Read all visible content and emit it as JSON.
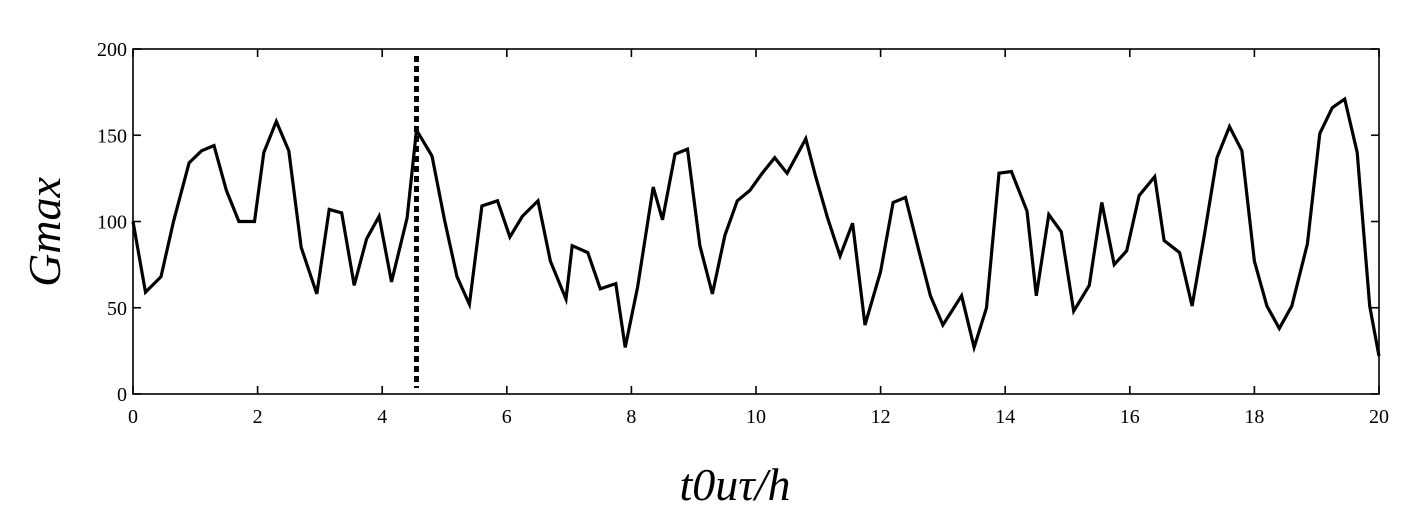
{
  "chart_data": {
    "type": "line",
    "title": "",
    "xlabel": "t0uτ/h",
    "ylabel": "Gmax",
    "xlim": [
      0,
      20
    ],
    "ylim": [
      0,
      200
    ],
    "x_ticks": [
      0,
      2,
      4,
      6,
      8,
      10,
      12,
      14,
      16,
      18,
      20
    ],
    "y_ticks": [
      0,
      50,
      100,
      150,
      200
    ],
    "grid": false,
    "line_color": "#000000",
    "marker_line": {
      "x": 4.55,
      "style": "dotted",
      "color": "#000000"
    },
    "series": [
      {
        "x": [
          0,
          0.2,
          0.45,
          0.65,
          0.9,
          1.1,
          1.3,
          1.5,
          1.7,
          1.95,
          2.1,
          2.3,
          2.5,
          2.7,
          2.95,
          3.15,
          3.35,
          3.55,
          3.75,
          3.95,
          4.15,
          4.4,
          4.55,
          4.8,
          5.0,
          5.2,
          5.4,
          5.6,
          5.85,
          6.05,
          6.25,
          6.5,
          6.7,
          6.95,
          7.05,
          7.3,
          7.5,
          7.75,
          7.9,
          8.1,
          8.35,
          8.5,
          8.7,
          8.9,
          9.1,
          9.3,
          9.5,
          9.7,
          9.9,
          10.1,
          10.3,
          10.5,
          10.8,
          10.95,
          11.15,
          11.35,
          11.55,
          11.75,
          12.0,
          12.2,
          12.4,
          12.6,
          12.8,
          13.0,
          13.3,
          13.5,
          13.7,
          13.9,
          14.1,
          14.35,
          14.5,
          14.7,
          14.9,
          15.1,
          15.35,
          15.55,
          15.75,
          15.95,
          16.15,
          16.4,
          16.55,
          16.8,
          17.0,
          17.2,
          17.4,
          17.6,
          17.8,
          18.0,
          18.2,
          18.4,
          18.6,
          18.85,
          19.05,
          19.25,
          19.45,
          19.65,
          19.85,
          20.0
        ],
        "values": [
          100,
          59,
          68,
          100,
          134,
          141,
          144,
          118,
          100,
          100,
          140,
          158,
          141,
          85,
          58,
          107,
          105,
          63,
          90,
          103,
          65,
          102,
          153,
          138,
          101,
          68,
          52,
          109,
          112,
          91,
          103,
          112,
          77,
          55,
          86,
          82,
          61,
          64,
          27,
          62,
          120,
          101,
          139,
          142,
          86,
          58,
          92,
          112,
          118,
          128,
          137,
          128,
          148,
          127,
          102,
          80,
          99,
          40,
          71,
          111,
          114,
          85,
          57,
          40,
          57,
          27,
          50,
          128,
          129,
          106,
          57,
          104,
          94,
          48,
          63,
          111,
          75,
          83,
          115,
          126,
          89,
          82,
          51,
          93,
          137,
          155,
          141,
          77,
          51,
          38,
          51,
          87,
          151,
          166,
          171,
          140,
          51,
          22
        ]
      }
    ]
  }
}
